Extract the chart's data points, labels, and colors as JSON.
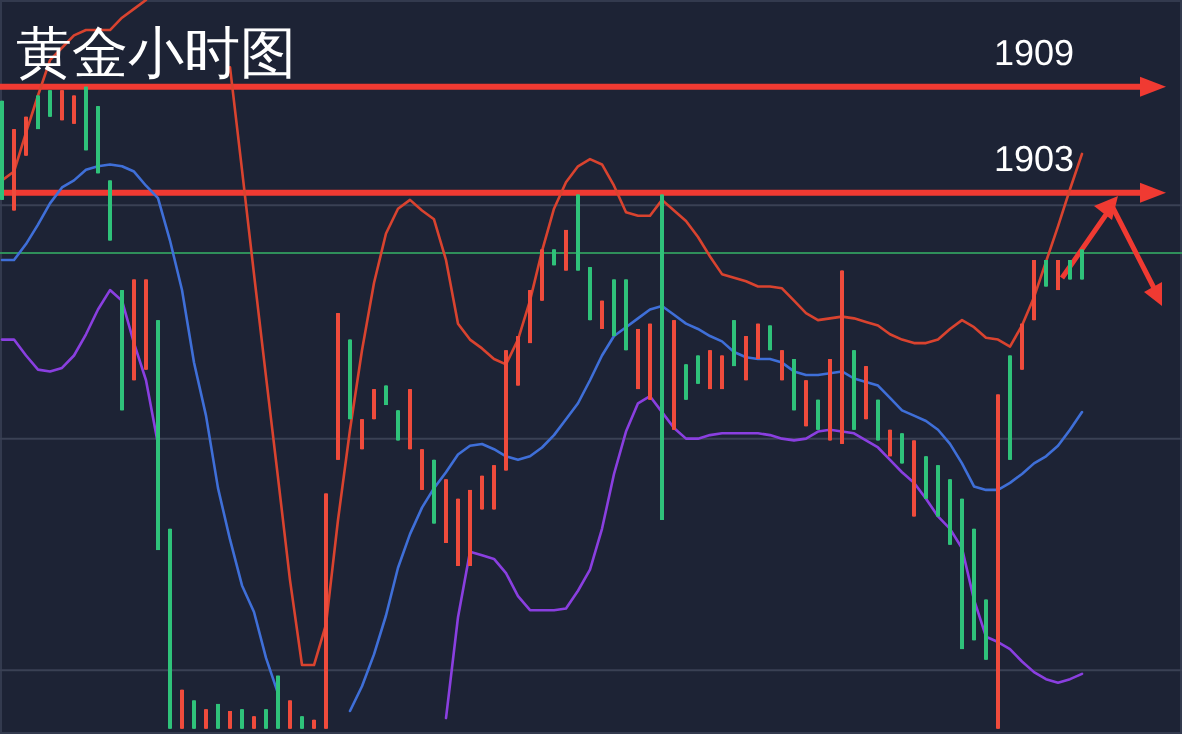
{
  "chart_data": {
    "type": "candlestick",
    "title": "黄金小时图",
    "categories": [
      null,
      null,
      null,
      null,
      null,
      null,
      null,
      null,
      null,
      null,
      null,
      null,
      null,
      null,
      null,
      null,
      null,
      null,
      null,
      null,
      null,
      null,
      null,
      null,
      null,
      null,
      null,
      null,
      null,
      null,
      null,
      null,
      null,
      null,
      null,
      null,
      null,
      null,
      null,
      null,
      null,
      null,
      null,
      null,
      null,
      null,
      null,
      null,
      null,
      null,
      null,
      null,
      null,
      null,
      null,
      null,
      null,
      null,
      null,
      null,
      null,
      null,
      null,
      null,
      null,
      null,
      null,
      null,
      null,
      null,
      null,
      null,
      null,
      null,
      null,
      null,
      null,
      null,
      null,
      null,
      null,
      null,
      null,
      null,
      null,
      null,
      null,
      null,
      null,
      null,
      null
    ],
    "ohlc": [
      [
        1908.2,
        1908.2,
        1902.6,
        1902.6
      ],
      [
        1902.0,
        1906.6,
        1902.0,
        1906.6
      ],
      [
        1905.1,
        1907.3,
        1905.1,
        1907.3
      ],
      [
        1908.5,
        1908.5,
        1906.6,
        1906.6
      ],
      [
        1908.8,
        1908.8,
        1907.3,
        1907.3
      ],
      [
        1907.1,
        1908.8,
        1907.1,
        1908.8
      ],
      [
        1906.9,
        1908.5,
        1906.9,
        1908.5
      ],
      [
        1909.0,
        1909.0,
        1905.4,
        1905.4
      ],
      [
        1907.9,
        1907.9,
        1904.1,
        1904.1
      ],
      [
        1903.7,
        1903.7,
        1900.3,
        1900.3
      ],
      [
        1897.5,
        1897.5,
        1890.7,
        1890.7
      ],
      [
        1892.4,
        1898.1,
        1892.4,
        1898.1
      ],
      [
        1893.0,
        1898.1,
        1893.0,
        1898.1
      ],
      [
        1895.8,
        1895.8,
        1882.8,
        1882.8
      ],
      [
        1884.0,
        1884.0,
        1872.7,
        1872.7
      ],
      [
        1872.7,
        1874.9,
        1872.7,
        1874.9
      ],
      [
        1874.3,
        1874.3,
        1872.7,
        1872.7
      ],
      [
        1872.7,
        1873.8,
        1872.7,
        1873.8
      ],
      [
        1874.1,
        1874.1,
        1872.7,
        1872.7
      ],
      [
        1872.7,
        1873.7,
        1872.7,
        1873.7
      ],
      [
        1873.8,
        1873.8,
        1872.7,
        1872.7
      ],
      [
        1872.7,
        1873.4,
        1872.7,
        1873.4
      ],
      [
        1873.8,
        1873.8,
        1872.7,
        1872.7
      ],
      [
        1875.7,
        1875.7,
        1872.7,
        1872.7
      ],
      [
        1872.7,
        1874.3,
        1872.7,
        1874.3
      ],
      [
        1873.4,
        1873.4,
        1872.7,
        1872.7
      ],
      [
        1872.7,
        1873.2,
        1872.7,
        1873.2
      ],
      [
        1872.7,
        1886.0,
        1872.7,
        1886.0
      ],
      [
        1887.9,
        1896.2,
        1887.9,
        1896.2
      ],
      [
        1894.7,
        1894.7,
        1890.2,
        1890.2
      ],
      [
        1888.5,
        1890.2,
        1888.5,
        1890.2
      ],
      [
        1890.2,
        1891.9,
        1890.2,
        1891.9
      ],
      [
        1892.1,
        1892.1,
        1891.0,
        1891.0
      ],
      [
        1890.7,
        1890.7,
        1889.0,
        1889.0
      ],
      [
        1888.5,
        1891.9,
        1888.5,
        1891.9
      ],
      [
        1886.2,
        1888.5,
        1886.2,
        1888.5
      ],
      [
        1887.9,
        1887.9,
        1884.3,
        1884.3
      ],
      [
        1883.2,
        1886.8,
        1883.2,
        1886.8
      ],
      [
        1881.9,
        1885.7,
        1881.9,
        1885.7
      ],
      [
        1881.9,
        1886.2,
        1881.9,
        1886.2
      ],
      [
        1885.1,
        1887.0,
        1885.1,
        1887.0
      ],
      [
        1885.1,
        1887.6,
        1885.1,
        1887.6
      ],
      [
        1887.3,
        1894.1,
        1887.3,
        1894.1
      ],
      [
        1892.1,
        1894.9,
        1892.1,
        1894.9
      ],
      [
        1894.5,
        1897.5,
        1894.5,
        1897.5
      ],
      [
        1896.9,
        1899.8,
        1896.9,
        1899.8
      ],
      [
        1899.8,
        1899.8,
        1898.9,
        1898.9
      ],
      [
        1898.6,
        1900.9,
        1898.6,
        1900.9
      ],
      [
        1902.9,
        1902.9,
        1898.6,
        1898.6
      ],
      [
        1898.8,
        1898.8,
        1895.8,
        1895.8
      ],
      [
        1895.3,
        1896.9,
        1895.3,
        1896.9
      ],
      [
        1898.1,
        1898.1,
        1894.9,
        1894.9
      ],
      [
        1898.1,
        1898.1,
        1894.1,
        1894.1
      ],
      [
        1891.9,
        1895.3,
        1891.9,
        1895.3
      ],
      [
        1891.3,
        1895.6,
        1891.3,
        1895.6
      ],
      [
        1902.9,
        1902.9,
        1884.5,
        1884.5
      ],
      [
        1889.6,
        1895.8,
        1889.6,
        1895.8
      ],
      [
        1893.3,
        1893.3,
        1891.3,
        1891.3
      ],
      [
        1893.8,
        1893.8,
        1892.2,
        1892.2
      ],
      [
        1891.9,
        1894.1,
        1891.9,
        1894.1
      ],
      [
        1891.9,
        1893.8,
        1891.9,
        1893.8
      ],
      [
        1895.8,
        1895.8,
        1893.2,
        1893.2
      ],
      [
        1892.4,
        1894.9,
        1892.4,
        1894.9
      ],
      [
        1893.6,
        1895.6,
        1893.6,
        1895.6
      ],
      [
        1895.5,
        1895.5,
        1894.1,
        1894.1
      ],
      [
        1892.4,
        1894.1,
        1892.4,
        1894.1
      ],
      [
        1893.6,
        1893.6,
        1890.7,
        1890.7
      ],
      [
        1889.8,
        1892.4,
        1889.8,
        1892.4
      ],
      [
        1891.3,
        1891.3,
        1889.6,
        1889.6
      ],
      [
        1889.0,
        1893.6,
        1889.0,
        1893.6
      ],
      [
        1888.8,
        1898.6,
        1888.8,
        1898.6
      ],
      [
        1894.1,
        1894.1,
        1889.6,
        1889.6
      ],
      [
        1890.2,
        1893.2,
        1890.2,
        1893.2
      ],
      [
        1891.3,
        1891.3,
        1889.0,
        1889.0
      ],
      [
        1888.1,
        1889.6,
        1888.1,
        1889.6
      ],
      [
        1889.4,
        1889.4,
        1887.7,
        1887.7
      ],
      [
        1884.7,
        1889.0,
        1884.7,
        1889.0
      ],
      [
        1888.1,
        1888.1,
        1885.7,
        1885.7
      ],
      [
        1887.6,
        1887.6,
        1884.7,
        1884.7
      ],
      [
        1886.8,
        1886.8,
        1883.1,
        1883.1
      ],
      [
        1885.7,
        1885.7,
        1877.2,
        1877.2
      ],
      [
        1884.0,
        1884.0,
        1877.7,
        1877.7
      ],
      [
        1880.0,
        1880.0,
        1876.6,
        1876.6
      ],
      [
        1872.7,
        1891.6,
        1872.7,
        1891.6
      ],
      [
        1893.8,
        1893.8,
        1887.9,
        1887.9
      ],
      [
        1893.0,
        1895.6,
        1893.0,
        1895.6
      ],
      [
        1895.8,
        1899.2,
        1895.8,
        1899.2
      ],
      [
        1899.2,
        1899.2,
        1897.7,
        1897.7
      ],
      [
        1897.5,
        1899.2,
        1897.5,
        1899.2
      ],
      [
        1899.2,
        1899.2,
        1898.1,
        1898.1
      ],
      [
        1899.8,
        1899.8,
        1898.1,
        1898.1
      ]
    ],
    "colors": [
      "#2fc27a",
      "#ef4b3c",
      "#ef4b3c",
      "#2fc27a",
      "#2fc27a",
      "#ef4b3c",
      "#ef4b3c",
      "#2fc27a",
      "#2fc27a",
      "#2fc27a",
      "#2fc27a",
      "#ef4b3c",
      "#ef4b3c",
      "#2fc27a",
      "#2fc27a",
      "#ef4b3c",
      "#2fc27a",
      "#ef4b3c",
      "#2fc27a",
      "#ef4b3c",
      "#2fc27a",
      "#ef4b3c",
      "#2fc27a",
      "#2fc27a",
      "#ef4b3c",
      "#2fc27a",
      "#ef4b3c",
      "#ef4b3c",
      "#ef4b3c",
      "#2fc27a",
      "#ef4b3c",
      "#ef4b3c",
      "#2fc27a",
      "#2fc27a",
      "#ef4b3c",
      "#ef4b3c",
      "#2fc27a",
      "#ef4b3c",
      "#ef4b3c",
      "#ef4b3c",
      "#ef4b3c",
      "#ef4b3c",
      "#ef4b3c",
      "#ef4b3c",
      "#ef4b3c",
      "#ef4b3c",
      "#2fc27a",
      "#ef4b3c",
      "#2fc27a",
      "#2fc27a",
      "#ef4b3c",
      "#2fc27a",
      "#2fc27a",
      "#ef4b3c",
      "#ef4b3c",
      "#2fc27a",
      "#ef4b3c",
      "#2fc27a",
      "#2fc27a",
      "#ef4b3c",
      "#ef4b3c",
      "#2fc27a",
      "#ef4b3c",
      "#ef4b3c",
      "#2fc27a",
      "#ef4b3c",
      "#2fc27a",
      "#ef4b3c",
      "#2fc27a",
      "#ef4b3c",
      "#ef4b3c",
      "#2fc27a",
      "#ef4b3c",
      "#2fc27a",
      "#ef4b3c",
      "#2fc27a",
      "#ef4b3c",
      "#2fc27a",
      "#2fc27a",
      "#2fc27a",
      "#2fc27a",
      "#2fc27a",
      "#2fc27a",
      "#ef4b3c",
      "#2fc27a",
      "#ef4b3c",
      "#ef4b3c",
      "#2fc27a",
      "#ef4b3c",
      "#2fc27a",
      "#2fc27a"
    ],
    "series": [
      {
        "type": "line",
        "color": "#d9432f",
        "values": [
          1903.7,
          1904.2,
          1906.4,
          1908.5,
          1910.5,
          1911.2,
          1911.9,
          1912.2,
          1912.2,
          1912.2,
          1912.9,
          1913.4,
          1913.9,
          null,
          null,
          null,
          null,
          null,
          null,
          1910.1,
          1904.3,
          1898.4,
          1892.6,
          1886.9,
          1881.1,
          1876.3,
          1876.3,
          1878.6,
          1884.5,
          1889.6,
          1894.1,
          1897.9,
          1900.7,
          1902.1,
          1902.6,
          1902.0,
          1901.5,
          1899.2,
          1895.6,
          1894.7,
          1894.2,
          1893.6,
          1893.3,
          1894.7,
          1896.9,
          1899.7,
          1902.1,
          1903.6,
          1904.5,
          1904.9,
          1904.6,
          1903.4,
          1901.9,
          1901.7,
          1901.7,
          1902.6,
          1902.0,
          1901.4,
          1900.5,
          1899.4,
          1898.4,
          1898.2,
          1898.0,
          1897.7,
          1897.7,
          1897.6,
          1896.9,
          1896.2,
          1895.8,
          1895.9,
          1896.0,
          1895.9,
          1895.7,
          1895.5,
          1895.0,
          1894.7,
          1894.5,
          1894.5,
          1894.7,
          1895.3,
          1895.8,
          1895.4,
          1894.8,
          1894.7,
          1894.3,
          1895.5,
          1897.1,
          1899.1,
          1901.1,
          1903.2,
          1905.2
        ]
      },
      {
        "type": "line",
        "color": "#3f6fd8",
        "values": [
          1899.2,
          1899.2,
          1900.1,
          1901.2,
          1902.4,
          1903.3,
          1903.7,
          1904.3,
          1904.5,
          1904.6,
          1904.5,
          1904.2,
          1903.4,
          1902.7,
          1900.3,
          1897.5,
          1893.4,
          1890.4,
          1886.3,
          1883.4,
          1880.8,
          1879.3,
          1876.7,
          1874.7,
          null,
          null,
          null,
          null,
          null,
          1873.7,
          1875.1,
          1876.9,
          1879.1,
          1881.8,
          1883.7,
          1885.2,
          1886.3,
          1887.2,
          1888.2,
          1888.7,
          1888.8,
          1888.5,
          1888.1,
          1887.9,
          1888.1,
          1888.6,
          1889.3,
          1890.2,
          1891.1,
          1892.4,
          1893.8,
          1894.9,
          1895.4,
          1895.9,
          1896.4,
          1896.6,
          1896.1,
          1895.6,
          1895.3,
          1894.9,
          1894.6,
          1894.0,
          1893.7,
          1893.6,
          1893.6,
          1893.4,
          1892.9,
          1892.7,
          1892.7,
          1892.8,
          1892.9,
          1892.5,
          1892.3,
          1892.1,
          1891.4,
          1890.7,
          1890.4,
          1890.1,
          1889.6,
          1888.8,
          1887.7,
          1886.4,
          1886.2,
          1886.2,
          1886.6,
          1887.1,
          1887.7,
          1888.1,
          1888.7,
          1889.6,
          1890.6
        ]
      },
      {
        "type": "line",
        "color": "#8a3fe0",
        "values": [
          1894.7,
          1894.7,
          1893.8,
          1893.0,
          1892.9,
          1893.1,
          1893.8,
          1895.0,
          1896.4,
          1897.5,
          1896.9,
          1894.5,
          1892.4,
          1888.8,
          null,
          null,
          null,
          null,
          null,
          null,
          null,
          null,
          null,
          null,
          null,
          null,
          null,
          null,
          null,
          null,
          null,
          null,
          null,
          null,
          null,
          null,
          null,
          1873.3,
          1879.0,
          1882.7,
          1882.5,
          1882.3,
          1881.5,
          1880.2,
          1879.4,
          1879.4,
          1879.4,
          1879.5,
          1880.5,
          1881.7,
          1884.0,
          1887.1,
          1889.5,
          1891.1,
          1891.5,
          1890.6,
          1889.7,
          1889.1,
          1889.1,
          1889.3,
          1889.4,
          1889.4,
          1889.4,
          1889.4,
          1889.3,
          1889.1,
          1889.0,
          1889.1,
          1889.5,
          1889.6,
          1889.5,
          1889.4,
          1889.0,
          1888.6,
          1887.9,
          1887.2,
          1886.6,
          1885.7,
          1884.7,
          1884.0,
          1882.9,
          1880.0,
          1877.9,
          1877.6,
          1877.2,
          1876.5,
          1875.9,
          1875.5,
          1875.3,
          1875.5,
          1875.8
        ]
      }
    ],
    "ylim": [
      1872.4,
      1913.9
    ],
    "yticks": [
      {
        "value": 1902.3,
        "label": null
      },
      {
        "value": 1889.1,
        "label": null
      },
      {
        "value": 1876.0,
        "label": null
      }
    ],
    "grid": "y",
    "ref_lines": [
      {
        "axis": "y",
        "value": 1909,
        "label": "1909",
        "color": "#f03a32"
      },
      {
        "axis": "y",
        "value": 1903,
        "label": "1903",
        "color": "#f03a32"
      },
      {
        "axis": "y",
        "value": 1899.6,
        "label": null,
        "color": "#2f8f5a"
      }
    ]
  }
}
